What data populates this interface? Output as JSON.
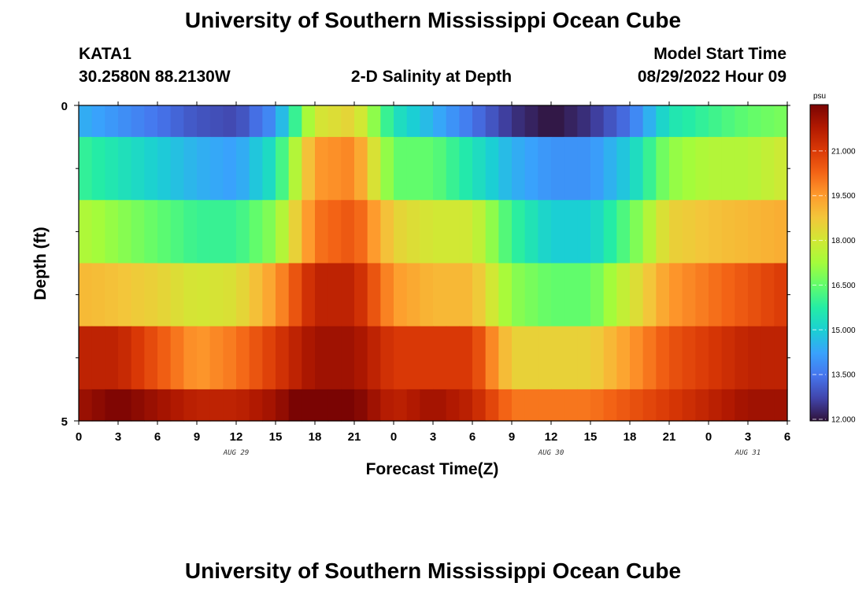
{
  "page": {
    "title": "University of Southern Mississippi Ocean Cube",
    "title_bottom": "University of Southern Mississippi Ocean Cube",
    "station": "KATA1",
    "coordinates": "30.2580N  88.2130W",
    "plot_title": "2-D Salinity at Depth",
    "model_label": "Model Start Time",
    "model_time": "08/29/2022 Hour 09"
  },
  "chart_data": {
    "type": "heatmap",
    "title": "2-D Salinity at Depth",
    "xlabel": "Forecast Time(Z)",
    "ylabel": "Depth (ft)",
    "x_tick_labels": [
      "0",
      "3",
      "6",
      "9",
      "12",
      "15",
      "18",
      "21",
      "0",
      "3",
      "6",
      "9",
      "12",
      "15",
      "18",
      "21",
      "0",
      "3",
      "6"
    ],
    "x_hours": [
      0,
      3,
      6,
      9,
      12,
      15,
      18,
      21,
      24,
      27,
      30,
      33,
      36,
      39,
      42,
      45,
      48,
      51,
      54
    ],
    "xlim_hours": [
      0,
      54
    ],
    "date_labels": [
      {
        "label": "AUG 29",
        "hour": 12
      },
      {
        "label": "AUG 30",
        "hour": 36
      },
      {
        "label": "AUG 31",
        "hour": 51
      }
    ],
    "y_tick_labels": [
      "0",
      "5"
    ],
    "ylim": [
      0,
      5
    ],
    "depth_layers": [
      {
        "from": 0.0,
        "to": 0.5
      },
      {
        "from": 0.5,
        "to": 1.5
      },
      {
        "from": 1.5,
        "to": 2.5
      },
      {
        "from": 2.5,
        "to": 3.5
      },
      {
        "from": 3.5,
        "to": 4.5
      },
      {
        "from": 4.5,
        "to": 5.0
      }
    ],
    "keyframe_hours": [
      0,
      3,
      6,
      9,
      12,
      15,
      18,
      21,
      24,
      27,
      30,
      33,
      36,
      39,
      42,
      45,
      48,
      51,
      54
    ],
    "values": [
      [
        14.5,
        14.0,
        13.5,
        13.0,
        12.8,
        14.0,
        18.0,
        18.5,
        15.5,
        14.5,
        13.5,
        12.5,
        12.0,
        12.5,
        13.5,
        15.5,
        16.0,
        16.5,
        16.8
      ],
      [
        16.0,
        15.5,
        15.0,
        14.5,
        14.2,
        15.5,
        19.5,
        19.8,
        16.5,
        16.5,
        15.5,
        14.5,
        14.0,
        14.0,
        15.0,
        17.0,
        17.5,
        17.5,
        18.0
      ],
      [
        17.5,
        17.0,
        16.5,
        16.0,
        16.0,
        17.0,
        20.0,
        20.5,
        18.5,
        18.0,
        18.0,
        16.0,
        15.0,
        15.0,
        16.5,
        18.5,
        18.8,
        19.0,
        19.2
      ],
      [
        19.0,
        18.8,
        18.5,
        18.0,
        18.2,
        19.5,
        21.5,
        21.5,
        19.5,
        19.0,
        19.0,
        17.0,
        16.5,
        16.5,
        18.0,
        19.5,
        20.0,
        20.5,
        21.0
      ],
      [
        21.5,
        21.5,
        20.5,
        19.5,
        20.0,
        21.0,
        22.0,
        22.0,
        21.0,
        21.0,
        21.0,
        18.5,
        18.5,
        18.5,
        19.5,
        20.5,
        21.0,
        21.5,
        21.5
      ],
      [
        22.0,
        22.5,
        22.0,
        21.5,
        21.5,
        22.0,
        23.0,
        22.5,
        21.5,
        22.0,
        21.5,
        20.0,
        20.0,
        20.0,
        20.5,
        21.0,
        21.5,
        22.0,
        22.0
      ]
    ],
    "colorbar": {
      "unit": "psu",
      "min": 12.0,
      "max": 22.5,
      "tick_labels": [
        "12.000",
        "13.500",
        "15.000",
        "16.500",
        "18.000",
        "19.500",
        "21.000"
      ],
      "tick_values": [
        12.0,
        13.5,
        15.0,
        16.5,
        18.0,
        19.5,
        21.0
      ],
      "colormap": [
        "#30123b",
        "#4145ab",
        "#4675ed",
        "#39a2fc",
        "#1bcfd4",
        "#24eca6",
        "#61fc6c",
        "#a4fc3b",
        "#d1e834",
        "#f3c63a",
        "#fe9b2d",
        "#f36315",
        "#d93806",
        "#b11901",
        "#7a0403"
      ]
    }
  }
}
